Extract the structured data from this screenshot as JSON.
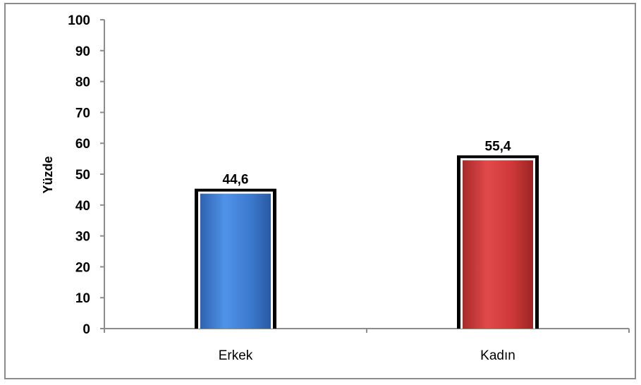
{
  "chart_data": {
    "type": "bar",
    "categories": [
      "Erkek",
      "Kadın"
    ],
    "values": [
      44.6,
      55.4
    ],
    "data_labels": [
      "44,6",
      "55,4"
    ],
    "title": "",
    "xlabel": "",
    "ylabel": "Yüzde",
    "ylim": [
      0,
      100
    ],
    "yticks": [
      "0",
      "10",
      "20",
      "30",
      "40",
      "50",
      "60",
      "70",
      "80",
      "90",
      "100"
    ],
    "grid": false,
    "bar_colors": [
      "#3f7fd6",
      "#d23a3a"
    ]
  }
}
